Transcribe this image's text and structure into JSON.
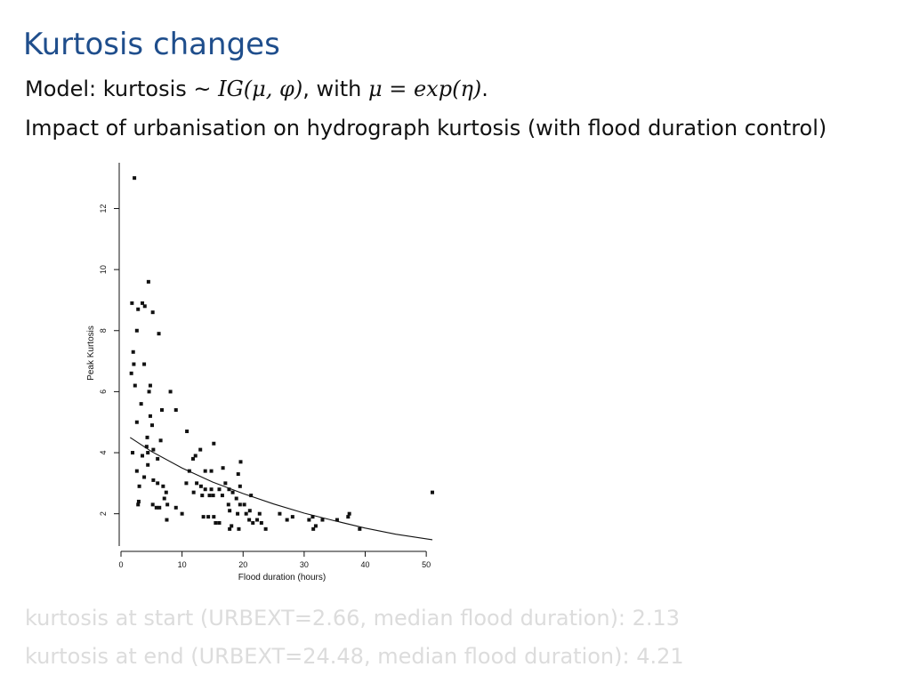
{
  "slide": {
    "title": "Kurtosis changes",
    "model_prefix": "Model: kurtosis ~ ",
    "model_formula": "IG(μ, φ)",
    "model_mid": ", with ",
    "model_link": "μ = exp(η)",
    "model_suffix": ".",
    "subtitle": "Impact of urbanisation on hydrograph kurtosis (with flood duration control)",
    "result_start": "kurtosis at start (URBEXT=2.66, median flood duration): 2.13",
    "result_end": "kurtosis at end (URBEXT=24.48, median flood duration): 4.21"
  },
  "chart_data": {
    "type": "scatter",
    "xlabel": "Flood duration (hours)",
    "ylabel": "Peak Kurtosis",
    "xlim": [
      0,
      51
    ],
    "ylim": [
      1,
      13.5
    ],
    "x_ticks": [
      0,
      10,
      20,
      30,
      40,
      50
    ],
    "y_ticks": [
      2,
      4,
      6,
      8,
      10,
      12
    ],
    "points": [
      [
        2.2,
        13.0
      ],
      [
        4.5,
        9.6
      ],
      [
        1.8,
        8.9
      ],
      [
        3.5,
        8.9
      ],
      [
        3.9,
        8.8
      ],
      [
        2.8,
        8.7
      ],
      [
        5.2,
        8.6
      ],
      [
        2.6,
        8.0
      ],
      [
        6.2,
        7.9
      ],
      [
        2.0,
        7.3
      ],
      [
        2.1,
        6.9
      ],
      [
        3.8,
        6.9
      ],
      [
        1.7,
        6.6
      ],
      [
        2.3,
        6.2
      ],
      [
        4.8,
        6.2
      ],
      [
        4.6,
        6.0
      ],
      [
        8.1,
        6.0
      ],
      [
        3.3,
        5.6
      ],
      [
        6.7,
        5.4
      ],
      [
        9.0,
        5.4
      ],
      [
        4.8,
        5.2
      ],
      [
        2.6,
        5.0
      ],
      [
        5.1,
        4.9
      ],
      [
        10.8,
        4.7
      ],
      [
        4.3,
        4.5
      ],
      [
        6.5,
        4.4
      ],
      [
        15.2,
        4.3
      ],
      [
        4.2,
        4.2
      ],
      [
        5.3,
        4.1
      ],
      [
        13.0,
        4.1
      ],
      [
        1.9,
        4.0
      ],
      [
        4.4,
        4.0
      ],
      [
        3.5,
        3.9
      ],
      [
        12.2,
        3.9
      ],
      [
        11.8,
        3.8
      ],
      [
        6.0,
        3.8
      ],
      [
        19.6,
        3.7
      ],
      [
        4.4,
        3.6
      ],
      [
        16.7,
        3.5
      ],
      [
        2.6,
        3.4
      ],
      [
        11.2,
        3.4
      ],
      [
        13.8,
        3.4
      ],
      [
        14.8,
        3.4
      ],
      [
        3.8,
        3.2
      ],
      [
        19.2,
        3.3
      ],
      [
        5.3,
        3.1
      ],
      [
        6.0,
        3.0
      ],
      [
        10.7,
        3.0
      ],
      [
        12.4,
        3.0
      ],
      [
        17.1,
        3.0
      ],
      [
        3.0,
        2.9
      ],
      [
        6.9,
        2.9
      ],
      [
        13.1,
        2.9
      ],
      [
        14.8,
        2.8
      ],
      [
        17.7,
        2.8
      ],
      [
        19.5,
        2.9
      ],
      [
        13.8,
        2.8
      ],
      [
        16.1,
        2.8
      ],
      [
        7.4,
        2.7
      ],
      [
        11.9,
        2.7
      ],
      [
        18.3,
        2.7
      ],
      [
        14.5,
        2.6
      ],
      [
        15.1,
        2.6
      ],
      [
        16.6,
        2.6
      ],
      [
        7.1,
        2.5
      ],
      [
        2.9,
        2.4
      ],
      [
        5.2,
        2.3
      ],
      [
        7.6,
        2.3
      ],
      [
        13.3,
        2.6
      ],
      [
        18.9,
        2.5
      ],
      [
        21.3,
        2.6
      ],
      [
        2.8,
        2.3
      ],
      [
        5.8,
        2.2
      ],
      [
        6.3,
        2.2
      ],
      [
        9.0,
        2.2
      ],
      [
        17.6,
        2.3
      ],
      [
        19.5,
        2.3
      ],
      [
        20.2,
        2.3
      ],
      [
        17.8,
        2.1
      ],
      [
        21.1,
        2.1
      ],
      [
        22.7,
        2.0
      ],
      [
        26.0,
        2.0
      ],
      [
        37.4,
        2.0
      ],
      [
        51.0,
        2.7
      ],
      [
        10.0,
        2.0
      ],
      [
        13.5,
        1.9
      ],
      [
        14.3,
        1.9
      ],
      [
        15.2,
        1.9
      ],
      [
        19.1,
        2.0
      ],
      [
        20.5,
        2.0
      ],
      [
        7.5,
        1.8
      ],
      [
        21.0,
        1.8
      ],
      [
        22.3,
        1.8
      ],
      [
        23.0,
        1.7
      ],
      [
        27.2,
        1.8
      ],
      [
        28.1,
        1.9
      ],
      [
        30.8,
        1.8
      ],
      [
        31.4,
        1.9
      ],
      [
        33.0,
        1.8
      ],
      [
        35.4,
        1.8
      ],
      [
        37.2,
        1.9
      ],
      [
        16.1,
        1.7
      ],
      [
        18.1,
        1.6
      ],
      [
        21.6,
        1.7
      ],
      [
        17.8,
        1.5
      ],
      [
        19.3,
        1.5
      ],
      [
        23.7,
        1.5
      ],
      [
        31.5,
        1.5
      ],
      [
        31.9,
        1.6
      ],
      [
        39.1,
        1.5
      ],
      [
        15.5,
        1.7
      ]
    ],
    "fit_line": [
      [
        1.5,
        4.5
      ],
      [
        5,
        4.04
      ],
      [
        10,
        3.5
      ],
      [
        15,
        3.04
      ],
      [
        20,
        2.66
      ],
      [
        25,
        2.32
      ],
      [
        30,
        2.02
      ],
      [
        35,
        1.77
      ],
      [
        40,
        1.53
      ],
      [
        45,
        1.33
      ],
      [
        51,
        1.15
      ]
    ]
  }
}
